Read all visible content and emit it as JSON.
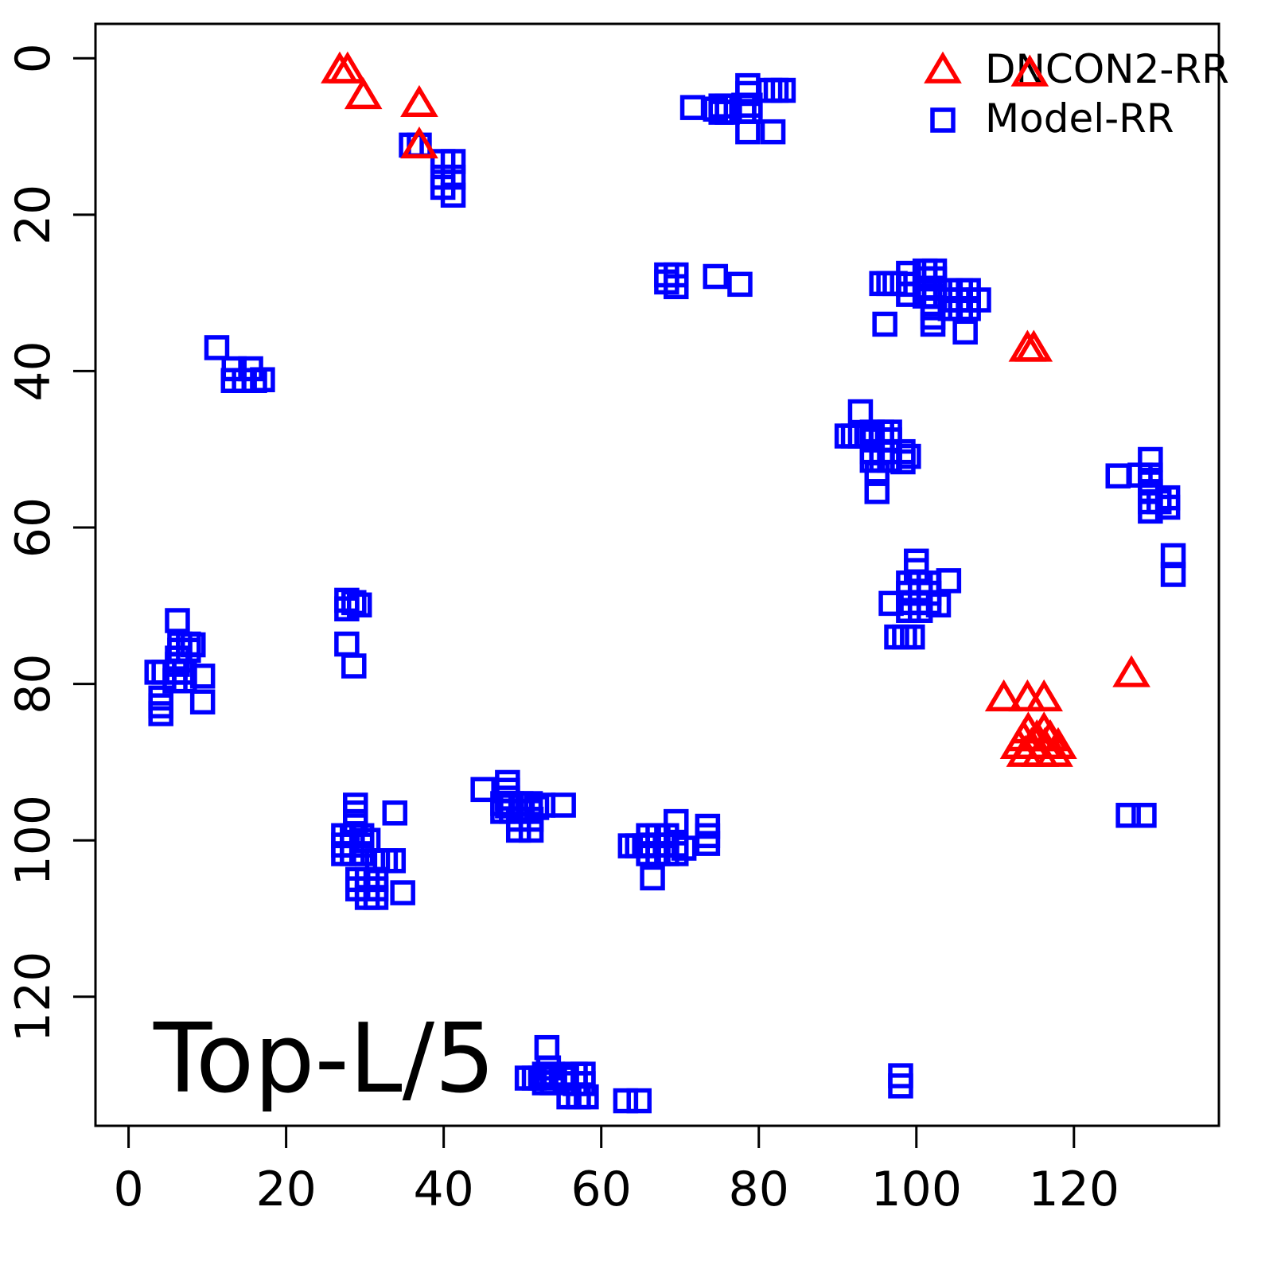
{
  "chart_data": {
    "type": "scatter",
    "title": "Top-L/5",
    "xlabel": "",
    "ylabel": "",
    "x_ticks": [
      0,
      20,
      40,
      60,
      80,
      100,
      120
    ],
    "y_ticks": [
      0,
      20,
      40,
      60,
      80,
      100,
      120
    ],
    "xlim": [
      -4.2,
      138.4
    ],
    "ylim": [
      136.5,
      -4.4
    ],
    "y_axis_reversed": true,
    "grid": false,
    "background": "#ffffff",
    "legend": {
      "position": "top-right",
      "items": [
        {
          "label": "DNCON2-RR",
          "marker": "triangle",
          "color": "#FF0000"
        },
        {
          "label": "Model-RR",
          "marker": "square",
          "color": "#0000FF"
        }
      ]
    },
    "series": [
      {
        "name": "DNCON2-RR",
        "marker": "triangle",
        "color": "#FF0000",
        "points": [
          [
            26.8,
            1.5
          ],
          [
            27.8,
            1.5
          ],
          [
            29.8,
            4.8
          ],
          [
            36.9,
            5.8
          ],
          [
            36.9,
            11.1
          ],
          [
            114.4,
            1.9
          ],
          [
            114.1,
            37.1
          ],
          [
            114.9,
            37.1
          ],
          [
            127.3,
            78.7
          ],
          [
            111.1,
            81.8
          ],
          [
            114.1,
            81.8
          ],
          [
            116.2,
            81.8
          ],
          [
            114.2,
            85.9
          ],
          [
            116.2,
            85.9
          ],
          [
            113.6,
            86.9
          ],
          [
            115.3,
            86.9
          ],
          [
            117.0,
            86.9
          ],
          [
            113.0,
            87.9
          ],
          [
            114.6,
            87.9
          ],
          [
            116.3,
            87.9
          ],
          [
            118.0,
            87.9
          ],
          [
            113.8,
            88.9
          ],
          [
            115.7,
            88.9
          ],
          [
            117.5,
            88.9
          ]
        ]
      },
      {
        "name": "Model-RR",
        "marker": "square",
        "color": "#0000FF",
        "points": [
          [
            35.9,
            11.1
          ],
          [
            36.9,
            11.1
          ],
          [
            39.9,
            13.2
          ],
          [
            41.2,
            13.2
          ],
          [
            39.9,
            15.2
          ],
          [
            41.2,
            15.2
          ],
          [
            39.9,
            16.5
          ],
          [
            41.2,
            17.5
          ],
          [
            71.6,
            6.3
          ],
          [
            74.5,
            6.5
          ],
          [
            75.2,
            6.1
          ],
          [
            76.0,
            6.1
          ],
          [
            75.2,
            6.9
          ],
          [
            76.0,
            6.9
          ],
          [
            78.1,
            6.0
          ],
          [
            78.9,
            6.0
          ],
          [
            78.1,
            6.8
          ],
          [
            78.9,
            6.8
          ],
          [
            78.6,
            3.5
          ],
          [
            78.6,
            4.5
          ],
          [
            81.4,
            4.1
          ],
          [
            82.2,
            4.1
          ],
          [
            83.1,
            4.1
          ],
          [
            78.6,
            9.4
          ],
          [
            81.8,
            9.4
          ],
          [
            68.3,
            27.7
          ],
          [
            69.5,
            27.7
          ],
          [
            68.3,
            28.6
          ],
          [
            69.5,
            29.2
          ],
          [
            74.5,
            27.9
          ],
          [
            77.6,
            28.9
          ],
          [
            95.6,
            28.8
          ],
          [
            96.5,
            28.8
          ],
          [
            97.3,
            28.8
          ],
          [
            99.0,
            27.5
          ],
          [
            99.0,
            28.9
          ],
          [
            99.0,
            30.2
          ],
          [
            101.1,
            27.2
          ],
          [
            102.3,
            27.2
          ],
          [
            101.1,
            28.2
          ],
          [
            102.3,
            28.2
          ],
          [
            101.1,
            29.4
          ],
          [
            102.3,
            29.4
          ],
          [
            101.1,
            30.4
          ],
          [
            102.3,
            30.4
          ],
          [
            104.3,
            29.7
          ],
          [
            105.6,
            29.7
          ],
          [
            106.6,
            29.7
          ],
          [
            104.3,
            30.9
          ],
          [
            105.6,
            30.9
          ],
          [
            106.6,
            30.9
          ],
          [
            104.3,
            32.0
          ],
          [
            105.6,
            32.0
          ],
          [
            106.6,
            32.0
          ],
          [
            107.9,
            30.9
          ],
          [
            102.1,
            31.9
          ],
          [
            102.1,
            33.1
          ],
          [
            102.1,
            34.0
          ],
          [
            96.0,
            34.0
          ],
          [
            106.2,
            35.0
          ],
          [
            11.2,
            37.0
          ],
          [
            13.4,
            39.7
          ],
          [
            15.5,
            39.7
          ],
          [
            13.3,
            41.2
          ],
          [
            14.7,
            41.2
          ],
          [
            16.0,
            41.2
          ],
          [
            17.0,
            41.1
          ],
          [
            92.9,
            45.2
          ],
          [
            91.2,
            48.3
          ],
          [
            92.0,
            48.3
          ],
          [
            92.9,
            48.3
          ],
          [
            93.7,
            48.3
          ],
          [
            94.4,
            47.8
          ],
          [
            95.6,
            47.8
          ],
          [
            96.6,
            47.8
          ],
          [
            94.4,
            48.8
          ],
          [
            95.6,
            48.8
          ],
          [
            96.6,
            48.8
          ],
          [
            94.4,
            50.3
          ],
          [
            95.6,
            50.3
          ],
          [
            96.6,
            50.3
          ],
          [
            94.4,
            51.4
          ],
          [
            95.6,
            51.4
          ],
          [
            96.6,
            51.4
          ],
          [
            98.3,
            50.3
          ],
          [
            98.3,
            51.6
          ],
          [
            99.0,
            50.9
          ],
          [
            95.0,
            53.1
          ],
          [
            95.0,
            55.4
          ],
          [
            125.6,
            53.4
          ],
          [
            129.7,
            51.3
          ],
          [
            128.4,
            53.3
          ],
          [
            129.7,
            53.3
          ],
          [
            129.7,
            54.3
          ],
          [
            129.7,
            55.4
          ],
          [
            129.7,
            56.7
          ],
          [
            129.7,
            57.9
          ],
          [
            130.8,
            56.7
          ],
          [
            131.9,
            56.2
          ],
          [
            131.9,
            57.4
          ],
          [
            132.6,
            63.6
          ],
          [
            132.6,
            66.0
          ],
          [
            100.0,
            64.3
          ],
          [
            100.0,
            65.5
          ],
          [
            99.0,
            67.1
          ],
          [
            100.5,
            67.1
          ],
          [
            101.6,
            67.1
          ],
          [
            99.0,
            68.4
          ],
          [
            100.5,
            68.4
          ],
          [
            101.6,
            68.4
          ],
          [
            99.0,
            69.6
          ],
          [
            100.5,
            69.6
          ],
          [
            101.6,
            69.6
          ],
          [
            99.0,
            70.6
          ],
          [
            100.5,
            70.6
          ],
          [
            96.8,
            69.7
          ],
          [
            102.8,
            69.9
          ],
          [
            104.1,
            66.8
          ],
          [
            97.5,
            74.0
          ],
          [
            98.5,
            74.0
          ],
          [
            99.5,
            74.0
          ],
          [
            6.2,
            71.9
          ],
          [
            6.5,
            74.9
          ],
          [
            7.6,
            74.9
          ],
          [
            8.2,
            75.0
          ],
          [
            6.5,
            75.7
          ],
          [
            7.6,
            75.7
          ],
          [
            6.2,
            76.7
          ],
          [
            6.2,
            77.5
          ],
          [
            3.6,
            78.5
          ],
          [
            4.5,
            78.5
          ],
          [
            5.9,
            78.5
          ],
          [
            7.1,
            78.5
          ],
          [
            5.9,
            79.6
          ],
          [
            7.1,
            79.6
          ],
          [
            9.4,
            79.0
          ],
          [
            4.1,
            81.8
          ],
          [
            4.1,
            82.8
          ],
          [
            4.1,
            83.8
          ],
          [
            9.4,
            82.3
          ],
          [
            27.7,
            69.3
          ],
          [
            28.6,
            69.6
          ],
          [
            29.3,
            69.9
          ],
          [
            27.7,
            70.4
          ],
          [
            27.7,
            74.9
          ],
          [
            28.6,
            77.7
          ],
          [
            28.8,
            95.5
          ],
          [
            28.8,
            96.5
          ],
          [
            28.8,
            97.6
          ],
          [
            33.8,
            96.5
          ],
          [
            27.3,
            99.4
          ],
          [
            28.4,
            99.4
          ],
          [
            29.6,
            99.4
          ],
          [
            27.3,
            100.6
          ],
          [
            28.4,
            100.6
          ],
          [
            29.6,
            100.6
          ],
          [
            30.4,
            100.0
          ],
          [
            27.3,
            101.7
          ],
          [
            28.4,
            101.7
          ],
          [
            29.6,
            101.7
          ],
          [
            31.6,
            102.6
          ],
          [
            32.6,
            102.6
          ],
          [
            33.6,
            102.6
          ],
          [
            29.1,
            105.0
          ],
          [
            30.3,
            105.0
          ],
          [
            31.4,
            105.0
          ],
          [
            29.1,
            106.2
          ],
          [
            30.3,
            106.2
          ],
          [
            31.4,
            106.2
          ],
          [
            30.3,
            107.3
          ],
          [
            31.4,
            107.3
          ],
          [
            34.8,
            106.7
          ],
          [
            45.0,
            93.5
          ],
          [
            48.1,
            92.6
          ],
          [
            48.1,
            93.6
          ],
          [
            48.1,
            94.6
          ],
          [
            48.1,
            95.6
          ],
          [
            47.5,
            95.3
          ],
          [
            48.6,
            95.3
          ],
          [
            49.8,
            95.3
          ],
          [
            51.0,
            95.3
          ],
          [
            47.5,
            96.3
          ],
          [
            48.6,
            96.3
          ],
          [
            49.8,
            96.3
          ],
          [
            51.0,
            96.3
          ],
          [
            51.8,
            95.8
          ],
          [
            52.6,
            95.5
          ],
          [
            55.2,
            95.5
          ],
          [
            49.5,
            97.3
          ],
          [
            51.1,
            97.3
          ],
          [
            49.5,
            98.7
          ],
          [
            51.1,
            98.7
          ],
          [
            63.7,
            100.7
          ],
          [
            64.6,
            100.7
          ],
          [
            65.5,
            100.7
          ],
          [
            66.0,
            99.4
          ],
          [
            67.2,
            99.4
          ],
          [
            68.3,
            99.4
          ],
          [
            66.0,
            100.6
          ],
          [
            67.2,
            100.6
          ],
          [
            68.3,
            100.6
          ],
          [
            69.5,
            100.6
          ],
          [
            66.0,
            101.7
          ],
          [
            67.2,
            101.7
          ],
          [
            68.3,
            101.7
          ],
          [
            69.5,
            101.7
          ],
          [
            70.5,
            101.0
          ],
          [
            69.5,
            97.6
          ],
          [
            73.5,
            98.2
          ],
          [
            73.5,
            99.4
          ],
          [
            73.5,
            100.4
          ],
          [
            66.5,
            104.8
          ],
          [
            126.9,
            96.8
          ],
          [
            128.9,
            96.8
          ],
          [
            53.1,
            126.5
          ],
          [
            53.3,
            129.1
          ],
          [
            50.6,
            130.4
          ],
          [
            51.5,
            130.4
          ],
          [
            52.3,
            130.4
          ],
          [
            52.8,
            129.9
          ],
          [
            53.8,
            129.9
          ],
          [
            52.8,
            131.0
          ],
          [
            53.8,
            131.0
          ],
          [
            55.6,
            130.4
          ],
          [
            56.7,
            129.9
          ],
          [
            57.7,
            129.9
          ],
          [
            56.7,
            131.1
          ],
          [
            57.7,
            131.1
          ],
          [
            55.9,
            132.8
          ],
          [
            57.1,
            132.8
          ],
          [
            58.1,
            132.8
          ],
          [
            63.1,
            133.3
          ],
          [
            64.8,
            133.3
          ],
          [
            98.0,
            130.1
          ],
          [
            98.0,
            131.4
          ]
        ]
      }
    ]
  }
}
